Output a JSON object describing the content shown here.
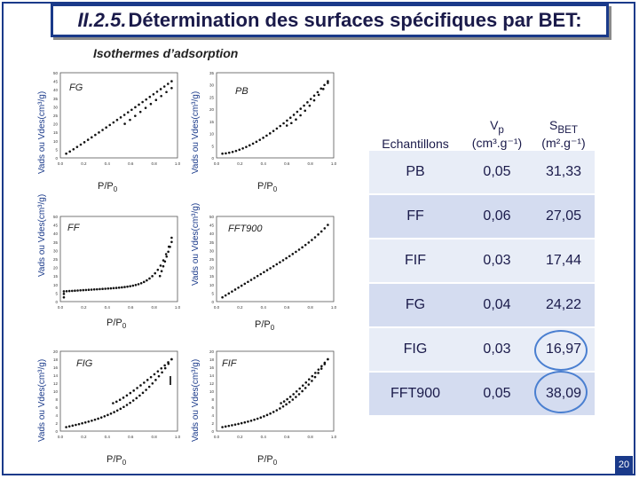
{
  "title": {
    "number": "II.2.5.",
    "text": "Détermination des surfaces spécifiques par BET:"
  },
  "section_label": "Isothermes d’adsorption",
  "axis": {
    "ylabel": "Vads ou Vdes(cm³/g)",
    "xlabel_main": "P/P",
    "xlabel_sub": "0"
  },
  "panels": [
    {
      "tag": "FG",
      "yticks": [
        "0",
        "5",
        "10",
        "15",
        "20",
        "25",
        "30",
        "35",
        "40",
        "45",
        "50"
      ],
      "xticks": [
        "0.0",
        "0.2",
        "0.4",
        "0.6",
        "0.8",
        "1.0"
      ]
    },
    {
      "tag": "PB",
      "yticks": [
        "0",
        "5",
        "10",
        "15",
        "20",
        "25",
        "30",
        "35"
      ],
      "xticks": [
        "0.0",
        "0.2",
        "0.4",
        "0.6",
        "0.8",
        "1.0"
      ]
    },
    {
      "tag": "FF",
      "yticks": [
        "0",
        "5",
        "10",
        "15",
        "20",
        "25",
        "30",
        "35",
        "40",
        "45",
        "50"
      ],
      "xticks": [
        "0.0",
        "0.2",
        "0.4",
        "0.6",
        "0.8",
        "1.0"
      ]
    },
    {
      "tag": "FFT900",
      "yticks": [
        "0",
        "5",
        "10",
        "15",
        "20",
        "25",
        "30",
        "35",
        "40",
        "45",
        "50"
      ],
      "xticks": [
        "0.0",
        "0.2",
        "0.4",
        "0.6",
        "0.8",
        "1.0"
      ]
    },
    {
      "tag": "FIG",
      "yticks": [
        "0",
        "2",
        "4",
        "6",
        "8",
        "10",
        "12",
        "14",
        "16",
        "18",
        "20"
      ],
      "xticks": [
        "0.0",
        "0.2",
        "0.4",
        "0.6",
        "0.8",
        "1.0"
      ]
    },
    {
      "tag": "FIF",
      "yticks": [
        "0",
        "2",
        "4",
        "6",
        "8",
        "10",
        "12",
        "14",
        "16",
        "18",
        "20"
      ],
      "xticks": [
        "0.0",
        "0.2",
        "0.4",
        "0.6",
        "0.8",
        "1.0"
      ]
    }
  ],
  "table": {
    "header": {
      "col1": "Echantillons",
      "col2_main": "V",
      "col2_sub": "p",
      "col2_unit": "(cm³.g⁻¹)",
      "col3_main": "S",
      "col3_sub": "BET",
      "col3_unit": "(m².g⁻¹)"
    },
    "rows": [
      {
        "name": "PB",
        "vp": "0,05",
        "sbet": "31,33"
      },
      {
        "name": "FF",
        "vp": "0,06",
        "sbet": "27,05"
      },
      {
        "name": "FIF",
        "vp": "0,03",
        "sbet": "17,44"
      },
      {
        "name": "FG",
        "vp": "0,04",
        "sbet": "24,22"
      },
      {
        "name": "FIG",
        "vp": "0,03",
        "sbet": "16,97"
      },
      {
        "name": "FFT900",
        "vp": "0,05",
        "sbet": "38,09"
      }
    ]
  },
  "page_number": "20",
  "colors": {
    "accent": "#1a3a8a",
    "highlight": "#4a7fd0"
  }
}
